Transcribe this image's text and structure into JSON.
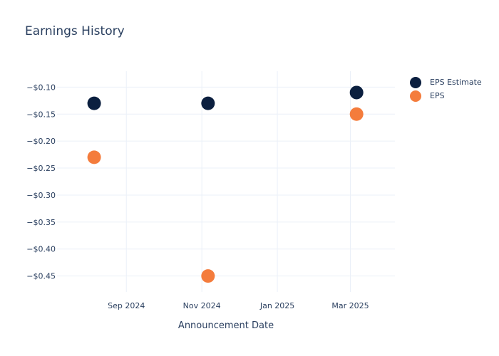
{
  "colors": {
    "estimate": "#0b1f3f",
    "eps": "#f47c3c",
    "grid": "#ebf0f8",
    "text": "#2a3f5f"
  },
  "chart_data": {
    "type": "scatter",
    "title": "Earnings History",
    "xlabel": "Announcement Date",
    "ylabel": "",
    "x_ticks": [
      {
        "date": "2024-09-01",
        "label": "Sep 2024"
      },
      {
        "date": "2024-11-01",
        "label": "Nov 2024"
      },
      {
        "date": "2025-01-01",
        "label": "Jan 2025"
      },
      {
        "date": "2025-03-01",
        "label": "Mar 2025"
      }
    ],
    "xlim": [
      "2024-07-07",
      "2025-04-06"
    ],
    "y_ticks": [
      -0.1,
      -0.15,
      -0.2,
      -0.25,
      -0.3,
      -0.35,
      -0.4,
      -0.45
    ],
    "y_tick_labels": [
      "−$0.10",
      "−$0.15",
      "−$0.20",
      "−$0.25",
      "−$0.30",
      "−$0.35",
      "−$0.40",
      "−$0.45"
    ],
    "ylim": [
      -0.4795,
      -0.0705
    ],
    "grid": true,
    "legend_position": "top-right",
    "series": [
      {
        "name": "EPS Estimate",
        "color_key": "estimate",
        "points": [
          {
            "x": "2024-08-06",
            "y": -0.13
          },
          {
            "x": "2024-11-06",
            "y": -0.13
          },
          {
            "x": "2025-03-06",
            "y": -0.11
          }
        ]
      },
      {
        "name": "EPS",
        "color_key": "eps",
        "points": [
          {
            "x": "2024-08-06",
            "y": -0.23
          },
          {
            "x": "2024-11-06",
            "y": -0.45
          },
          {
            "x": "2025-03-06",
            "y": -0.15
          }
        ]
      }
    ]
  }
}
